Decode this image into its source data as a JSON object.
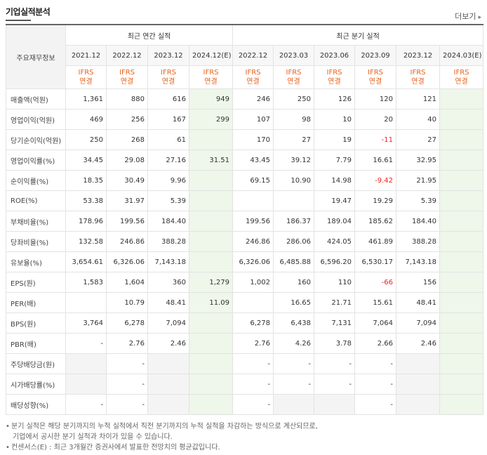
{
  "title": "기업실적분석",
  "more_label": "더보기",
  "header": {
    "row_header": "주요재무정보",
    "group_annual": "최근 연간 실적",
    "group_quarter": "최근 분기 실적",
    "annual_periods": [
      "2021.12",
      "2022.12",
      "2023.12",
      "2024.12(E)"
    ],
    "quarter_periods": [
      "2022.12",
      "2023.03",
      "2023.06",
      "2023.09",
      "2023.12",
      "2024.03(E)"
    ],
    "ifrs_line1": "IFRS",
    "ifrs_line2": "연결"
  },
  "rows": [
    {
      "label": "매출액(억원)",
      "annual": [
        "1,361",
        "880",
        "616",
        "949"
      ],
      "quarter": [
        "246",
        "250",
        "126",
        "120",
        "121",
        ""
      ]
    },
    {
      "label": "영업이익(억원)",
      "annual": [
        "469",
        "256",
        "167",
        "299"
      ],
      "quarter": [
        "107",
        "98",
        "10",
        "20",
        "40",
        ""
      ]
    },
    {
      "label": "당기순이익(억원)",
      "annual": [
        "250",
        "268",
        "61",
        ""
      ],
      "quarter": [
        "170",
        "27",
        "19",
        "-11",
        "27",
        ""
      ]
    },
    {
      "label": "영업이익률(%)",
      "annual": [
        "34.45",
        "29.08",
        "27.16",
        "31.51"
      ],
      "quarter": [
        "43.45",
        "39.12",
        "7.79",
        "16.61",
        "32.95",
        ""
      ]
    },
    {
      "label": "순이익률(%)",
      "annual": [
        "18.35",
        "30.49",
        "9.96",
        ""
      ],
      "quarter": [
        "69.15",
        "10.90",
        "14.98",
        "-9.42",
        "21.95",
        ""
      ]
    },
    {
      "label": "ROE(%)",
      "annual": [
        "53.38",
        "31.97",
        "5.39",
        ""
      ],
      "quarter": [
        "",
        "",
        "19.47",
        "19.29",
        "5.39",
        ""
      ]
    },
    {
      "label": "부채비율(%)",
      "annual": [
        "178.96",
        "199.56",
        "184.40",
        ""
      ],
      "quarter": [
        "199.56",
        "186.37",
        "189.04",
        "185.62",
        "184.40",
        ""
      ]
    },
    {
      "label": "당좌비율(%)",
      "annual": [
        "132.58",
        "246.86",
        "388.28",
        ""
      ],
      "quarter": [
        "246.86",
        "286.06",
        "424.05",
        "461.89",
        "388.28",
        ""
      ]
    },
    {
      "label": "유보율(%)",
      "annual": [
        "3,654.61",
        "6,326.06",
        "7,143.18",
        ""
      ],
      "quarter": [
        "6,326.06",
        "6,485.88",
        "6,596.20",
        "6,530.17",
        "7,143.18",
        ""
      ]
    },
    {
      "label": "EPS(원)",
      "annual": [
        "1,583",
        "1,604",
        "360",
        "1,279"
      ],
      "quarter": [
        "1,002",
        "160",
        "110",
        "-66",
        "156",
        ""
      ]
    },
    {
      "label": "PER(배)",
      "annual": [
        "",
        "10.79",
        "48.41",
        "11.09"
      ],
      "quarter": [
        "",
        "16.65",
        "21.71",
        "15.61",
        "48.41",
        ""
      ]
    },
    {
      "label": "BPS(원)",
      "annual": [
        "3,764",
        "6,278",
        "7,094",
        ""
      ],
      "quarter": [
        "6,278",
        "6,438",
        "7,131",
        "7,064",
        "7,094",
        ""
      ]
    },
    {
      "label": "PBR(배)",
      "annual": [
        "-",
        "2.76",
        "2.46",
        ""
      ],
      "quarter": [
        "2.76",
        "4.26",
        "3.78",
        "2.66",
        "2.46",
        ""
      ]
    },
    {
      "label": "주당배당금(원)",
      "annual": [
        "",
        "-",
        "",
        ""
      ],
      "quarter": [
        "-",
        "-",
        "-",
        "-",
        "",
        ""
      ]
    },
    {
      "label": "시가배당률(%)",
      "annual": [
        "",
        "-",
        "",
        ""
      ],
      "quarter": [
        "-",
        "-",
        "-",
        "-",
        "",
        ""
      ]
    },
    {
      "label": "배당성향(%)",
      "annual": [
        "-",
        "-",
        "",
        ""
      ],
      "quarter": [
        "-",
        "",
        "",
        "-",
        "",
        ""
      ]
    }
  ],
  "notes": {
    "note1_line1": "분기 실적은 해당 분기까지의 누적 실적에서 직전 분기까지의 누적 실적을 차감하는 방식으로 계산되므로,",
    "note1_line2": "기업에서 공시한 분기 실적과 차이가 있을 수 있습니다.",
    "note2": "컨센서스(E) : 최근 3개월간 증권사에서 발표한 전망치의 평균값입니다."
  },
  "colors": {
    "ifrs": "#e8611a",
    "negative": "#ee2222",
    "estimate_bg": "#eff6ea"
  }
}
